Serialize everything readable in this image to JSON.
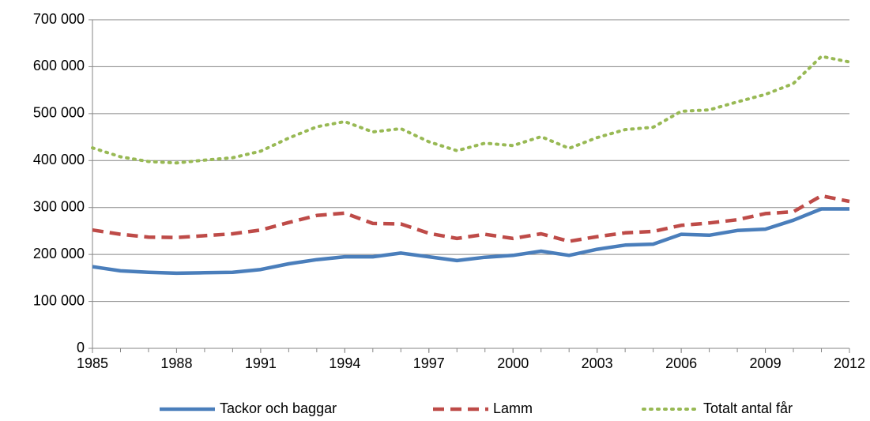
{
  "chart_data": {
    "type": "line",
    "x": [
      1985,
      1986,
      1987,
      1988,
      1989,
      1990,
      1991,
      1992,
      1993,
      1994,
      1995,
      1996,
      1997,
      1998,
      1999,
      2000,
      2001,
      2002,
      2003,
      2004,
      2005,
      2006,
      2007,
      2008,
      2009,
      2010,
      2011,
      2012
    ],
    "series": [
      {
        "name": "Tackor och baggar",
        "color": "#4a7ebb",
        "dash": "solid",
        "values": [
          174000,
          165000,
          162000,
          160000,
          161000,
          162000,
          168000,
          180000,
          189000,
          195000,
          195000,
          203000,
          195000,
          187000,
          194000,
          198000,
          207000,
          198000,
          211000,
          220000,
          222000,
          243000,
          241000,
          251000,
          254000,
          273000,
          297000,
          297000
        ]
      },
      {
        "name": "Lamm",
        "color": "#be4b48",
        "dash": "dashed",
        "values": [
          252000,
          243000,
          237000,
          236000,
          240000,
          244000,
          252000,
          268000,
          283000,
          288000,
          266000,
          265000,
          245000,
          234000,
          243000,
          234000,
          244000,
          228000,
          238000,
          246000,
          249000,
          262000,
          267000,
          274000,
          287000,
          291000,
          325000,
          313000
        ]
      },
      {
        "name": "Totalt antal får",
        "color": "#98b954",
        "dash": "dotted",
        "values": [
          427000,
          408000,
          398000,
          395000,
          401000,
          406000,
          420000,
          448000,
          472000,
          483000,
          461000,
          468000,
          440000,
          421000,
          437000,
          432000,
          451000,
          426000,
          449000,
          466000,
          471000,
          505000,
          508000,
          525000,
          541000,
          564000,
          622000,
          610000
        ]
      }
    ],
    "xlim": [
      1985,
      2012
    ],
    "xticks": [
      1985,
      1988,
      1991,
      1994,
      1997,
      2000,
      2003,
      2006,
      2009,
      2012
    ],
    "ylim": [
      0,
      700000
    ],
    "yticks": [
      0,
      {
        "value": 100000,
        "label": "100 000"
      },
      {
        "value": 200000,
        "label": "200 000"
      },
      {
        "value": 300000,
        "label": "300 000"
      },
      {
        "value": 400000,
        "label": "400 000"
      },
      {
        "value": 500000,
        "label": "500 000"
      },
      {
        "value": 600000,
        "label": "600 000"
      },
      {
        "value": 700000,
        "label": "700 000"
      }
    ],
    "grid": true,
    "legend": "bottom"
  }
}
